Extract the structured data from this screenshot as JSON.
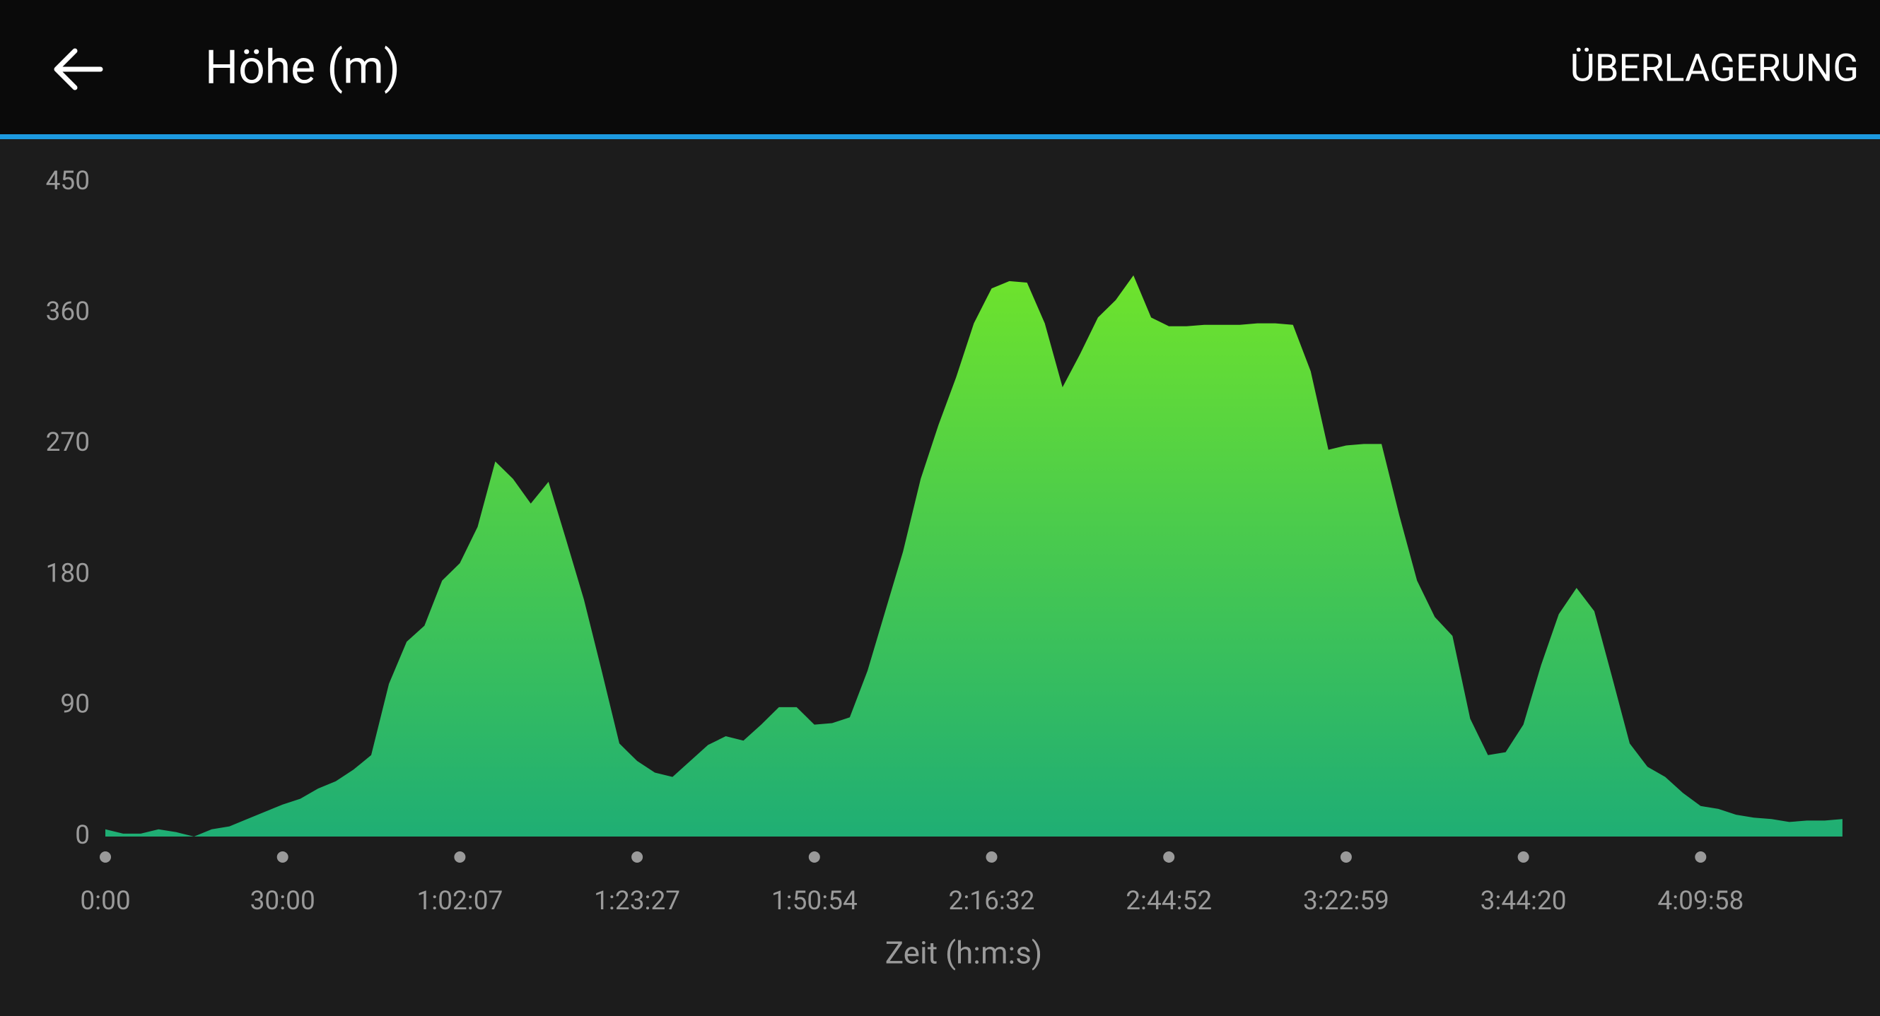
{
  "header": {
    "title": "Höhe (m)",
    "action": "ÜBERLAGERUNG"
  },
  "chart_data": {
    "type": "area",
    "x_label": "Zeit (h:m:s)",
    "categories": [
      "0:00",
      null,
      null,
      null,
      null,
      null,
      null,
      null,
      null,
      null,
      "30:00",
      null,
      null,
      null,
      null,
      null,
      null,
      null,
      null,
      null,
      "1:02:07",
      null,
      null,
      null,
      null,
      null,
      null,
      null,
      null,
      null,
      "1:23:27",
      null,
      null,
      null,
      null,
      null,
      null,
      null,
      null,
      null,
      "1:50:54",
      null,
      null,
      null,
      null,
      null,
      null,
      null,
      null,
      null,
      "2:16:32",
      null,
      null,
      null,
      null,
      null,
      null,
      null,
      null,
      null,
      "2:44:52",
      null,
      null,
      null,
      null,
      null,
      null,
      null,
      null,
      null,
      "3:22:59",
      null,
      null,
      null,
      null,
      null,
      null,
      null,
      null,
      null,
      "3:44:20",
      null,
      null,
      null,
      null,
      null,
      null,
      null,
      null,
      null,
      "4:09:58",
      null,
      null,
      null,
      null,
      null,
      null,
      null,
      null
    ],
    "values": [
      5,
      2,
      2,
      5,
      3,
      0,
      5,
      7,
      12,
      17,
      22,
      26,
      33,
      38,
      46,
      56,
      105,
      134,
      145,
      176,
      188,
      213,
      258,
      246,
      229,
      244,
      204,
      163,
      114,
      64,
      52,
      44,
      41,
      52,
      63,
      69,
      66,
      77,
      89,
      89,
      77,
      78,
      82,
      114,
      155,
      196,
      246,
      283,
      316,
      353,
      377,
      382,
      381,
      353,
      309,
      332,
      357,
      369,
      386,
      357,
      351,
      351,
      352,
      352,
      352,
      353,
      353,
      352,
      320,
      266,
      269,
      270,
      270,
      221,
      176,
      151,
      138,
      81,
      56,
      58,
      77,
      118,
      153,
      171,
      155,
      110,
      64,
      48,
      41,
      30,
      21,
      19,
      15,
      13,
      12,
      10,
      11,
      11,
      12
    ],
    "colors": [
      "#6ee32c",
      "#1fae74"
    ],
    "ylim": [
      0,
      450
    ],
    "yticks": [
      0,
      90,
      180,
      270,
      360,
      450
    ],
    "grid": false
  }
}
